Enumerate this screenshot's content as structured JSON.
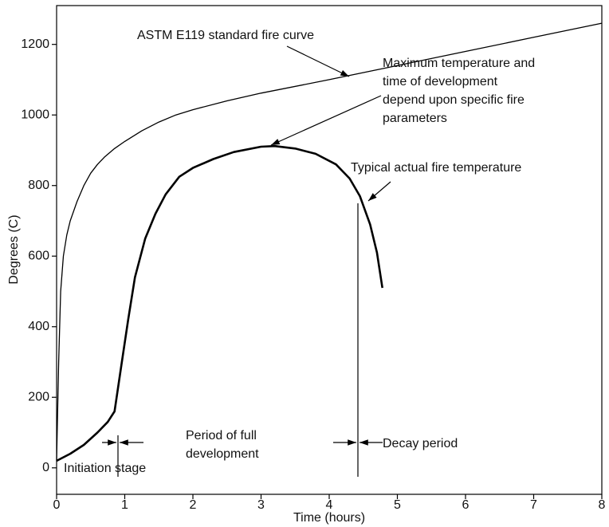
{
  "chart_data": {
    "type": "line",
    "xlabel": "Time (hours)",
    "ylabel": "Degrees (C)",
    "xlim": [
      0,
      8
    ],
    "xticks": [
      0,
      1,
      2,
      3,
      4,
      5,
      6,
      7,
      8
    ],
    "ylim": [
      -75,
      1310
    ],
    "yticks": [
      0,
      200,
      400,
      600,
      800,
      1000,
      1200
    ],
    "series": [
      {
        "name": "ASTM E119 standard fire curve",
        "color": "#000000",
        "x": [
          0,
          0.03,
          0.06,
          0.1,
          0.15,
          0.2,
          0.3,
          0.4,
          0.5,
          0.6,
          0.7,
          0.85,
          1,
          1.25,
          1.5,
          1.75,
          2,
          2.5,
          3,
          4,
          5,
          6,
          7,
          8
        ],
        "values": [
          20,
          300,
          500,
          600,
          660,
          700,
          755,
          800,
          835,
          860,
          880,
          905,
          925,
          955,
          980,
          1000,
          1015,
          1040,
          1062,
          1100,
          1140,
          1180,
          1220,
          1260
        ]
      },
      {
        "name": "Typical actual fire temperature",
        "color": "#000000",
        "x": [
          0,
          0.2,
          0.4,
          0.6,
          0.75,
          0.85,
          0.95,
          1.05,
          1.15,
          1.3,
          1.45,
          1.6,
          1.8,
          2,
          2.3,
          2.6,
          3,
          3.2,
          3.5,
          3.8,
          4.1,
          4.3,
          4.45,
          4.6,
          4.7,
          4.78
        ],
        "values": [
          20,
          40,
          65,
          100,
          130,
          160,
          290,
          420,
          540,
          650,
          720,
          775,
          825,
          850,
          875,
          895,
          910,
          912,
          905,
          890,
          860,
          820,
          770,
          690,
          610,
          510
        ]
      }
    ],
    "annotations": [
      [
        "ASTM E119 standard fire curve"
      ],
      [
        "Maximum temperature and",
        "time of development",
        "depend upon specific fire",
        "parameters"
      ],
      [
        "Typical actual fire temperature"
      ],
      [
        "Period of full",
        "development"
      ],
      [
        "Initiation stage"
      ],
      [
        "Decay period"
      ]
    ]
  }
}
